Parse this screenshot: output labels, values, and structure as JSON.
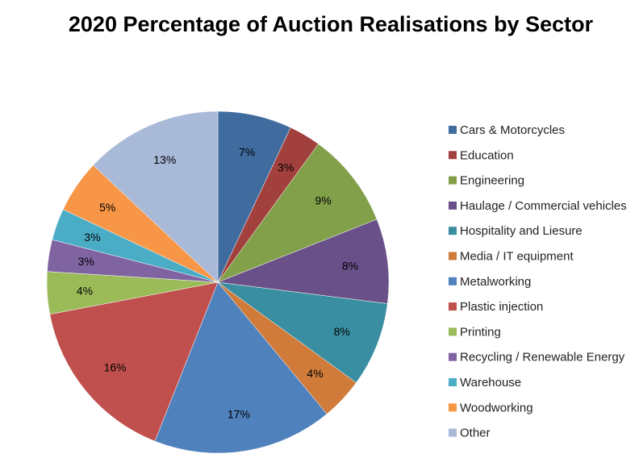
{
  "chart_data": {
    "type": "pie",
    "title": "2020 Percentage of Auction Realisations by Sector",
    "legend_position": "right",
    "categories": [
      "Cars & Motorcycles",
      "Education",
      "Engineering",
      "Haulage / Commercial vehicles",
      "Hospitality and Liesure",
      "Media / IT equipment",
      "Metalworking",
      "Plastic injection",
      "Printing",
      "Recycling / Renewable Energy",
      "Warehouse",
      "Woodworking",
      "Other"
    ],
    "values": [
      7,
      3,
      9,
      8,
      8,
      4,
      17,
      16,
      4,
      3,
      3,
      5,
      13
    ],
    "data_labels": [
      "7%",
      "3%",
      "9%",
      "8%",
      "8%",
      "4%",
      "17%",
      "16%",
      "4%",
      "3%",
      "3%",
      "5%",
      "13%"
    ],
    "colors": [
      "#3F6B9F",
      "#A2403D",
      "#82A04A",
      "#6A5088",
      "#3A8EA2",
      "#D07B3A",
      "#4F81BD",
      "#C0504D",
      "#9BBB59",
      "#8064A2",
      "#4BACC6",
      "#F79646",
      "#A9B9D8"
    ]
  }
}
